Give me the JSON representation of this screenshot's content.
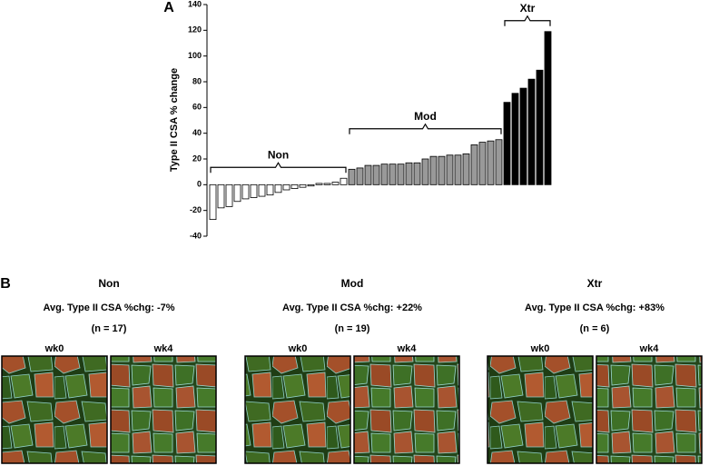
{
  "chart_data": {
    "type": "bar",
    "panel_label": "A",
    "ylabel": "Type II CSA % change",
    "ylim": [
      -40,
      140
    ],
    "yticks": [
      -40,
      -20,
      0,
      20,
      40,
      60,
      80,
      100,
      120,
      140
    ],
    "series": [
      {
        "name": "Non",
        "color": "#ffffff",
        "values": [
          -27,
          -18,
          -17,
          -13,
          -11,
          -10,
          -9,
          -8,
          -6,
          -4,
          -3,
          -2,
          -1,
          1,
          1,
          2,
          5
        ]
      },
      {
        "name": "Mod",
        "color": "#999999",
        "values": [
          12,
          13,
          15,
          15,
          16,
          16,
          16,
          17,
          17,
          20,
          22,
          22,
          23,
          23,
          24,
          31,
          33,
          34,
          35
        ]
      },
      {
        "name": "Xtr",
        "color": "#000000",
        "values": [
          64,
          71,
          75,
          82,
          89,
          119
        ]
      }
    ]
  },
  "panel_b": {
    "label": "B",
    "groups": [
      {
        "title": "Non",
        "summary": "Avg. Type II CSA %chg: -7%",
        "n": "(n = 17)",
        "images": [
          "wk0",
          "wk4"
        ]
      },
      {
        "title": "Mod",
        "summary": "Avg. Type II CSA %chg: +22%",
        "n": "(n = 19)",
        "images": [
          "wk0",
          "wk4"
        ]
      },
      {
        "title": "Xtr",
        "summary": "Avg. Type II CSA %chg: +83%",
        "n": "(n = 6)",
        "images": [
          "wk0",
          "wk4"
        ]
      }
    ]
  }
}
